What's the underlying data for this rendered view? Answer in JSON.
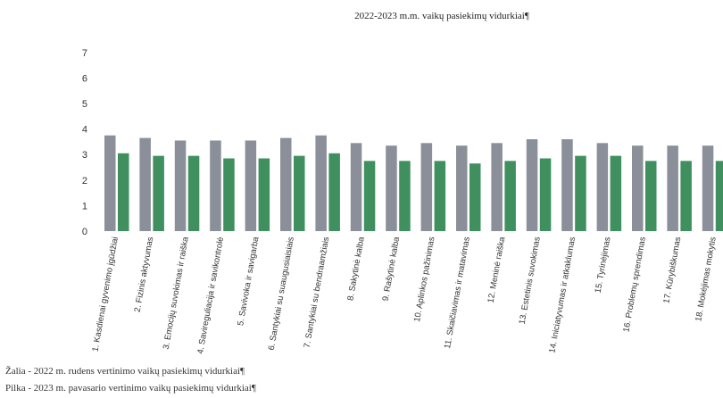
{
  "chart_data": {
    "type": "bar",
    "title": "2022-2023 m.m. vaikų pasiekimų vidurkiai¶",
    "categories": [
      "1. Kasdienai gyvenimo įgūdžiai",
      "2. Fizinis aktyvumas",
      "3. Emocijų suvokimas ir raiška",
      "4. Savireguliacija ir savikontrolė",
      "5. Savivoka ir savigarba",
      "6. Santykiai su suaugusiaisiais",
      "7. Santykiai su bendraamžiais",
      "8. Sakytinė kalba",
      "9. Rašytinė kalba",
      "10. Aplinkos pažinimas",
      "11. Skaičiavimas ir matavimas",
      "12. Meninė raiška",
      "13. Estetinis suvokimas",
      "14. Iniciatyvumas ir atkaklumas",
      "15. Tyrinėjimas",
      "16. Problemų sprendimas",
      "17. Kūrybiškumas",
      "18. Mokėjimas mokytis"
    ],
    "series": [
      {
        "name": "Pilka - 2023 m. pavasario vertinimo vaikų pasiekimų vidurkiai¶",
        "color": "#8a8f99",
        "values": [
          3.75,
          3.65,
          3.55,
          3.55,
          3.55,
          3.65,
          3.75,
          3.45,
          3.35,
          3.45,
          3.35,
          3.45,
          3.6,
          3.6,
          3.45,
          3.35,
          3.35,
          3.35
        ]
      },
      {
        "name": "Žalia - 2022 m. rudens vertinimo vaikų pasiekimų vidurkiai¶",
        "color": "#3f8f5f",
        "values": [
          3.05,
          2.95,
          2.95,
          2.85,
          2.85,
          2.95,
          3.05,
          2.75,
          2.75,
          2.75,
          2.65,
          2.75,
          2.85,
          2.95,
          2.95,
          2.75,
          2.75,
          2.75
        ]
      }
    ],
    "ylim": [
      0,
      7
    ],
    "yticks": [
      "0",
      "1",
      "2",
      "3",
      "4",
      "5",
      "6",
      "7"
    ],
    "grid": false,
    "legend": "below chart"
  },
  "notes": {
    "green": "Žalia - 2022 m. rudens vertinimo vaikų pasiekimų vidurkiai¶",
    "gray": "Pilka - 2023 m. pavasario vertinimo vaikų pasiekimų vidurkiai¶"
  }
}
